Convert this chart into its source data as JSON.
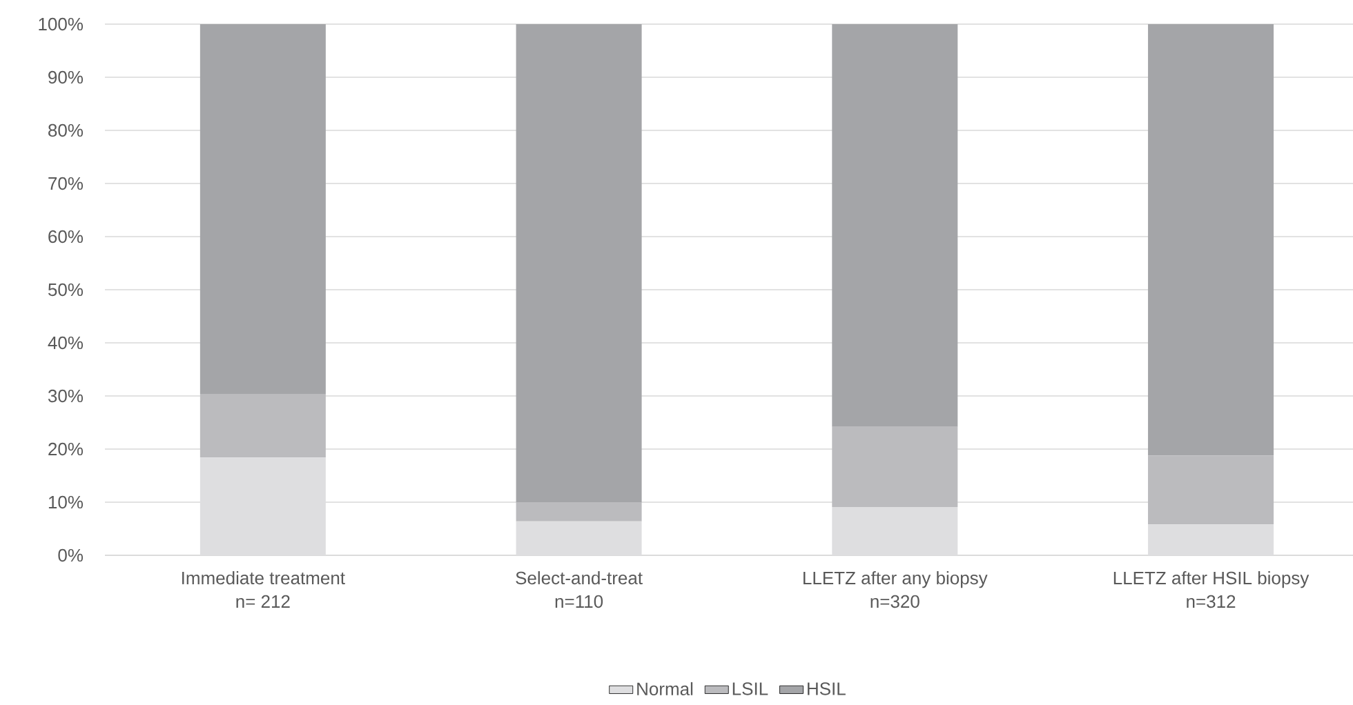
{
  "chart_data": {
    "type": "bar",
    "stacked": true,
    "categories": [
      "Immediate treatment\nn= 212",
      "Select-and-treat\nn=110",
      "LLETZ after any biopsy\nn=320",
      "LLETZ after HSIL biopsy\nn=312"
    ],
    "series": [
      {
        "name": "Normal",
        "color": "#dedee0",
        "values": [
          18.4,
          6.4,
          9.1,
          5.8
        ]
      },
      {
        "name": "LSIL",
        "color": "#bbbbbe",
        "values": [
          11.9,
          3.6,
          15.1,
          13.0
        ]
      },
      {
        "name": "HSIL",
        "color": "#a4a5a8",
        "values": [
          69.7,
          90.0,
          75.8,
          81.2
        ]
      }
    ],
    "ylim": [
      0,
      100
    ],
    "yticks": [
      {
        "value": 0,
        "label": "0%"
      },
      {
        "value": 10,
        "label": "10%"
      },
      {
        "value": 20,
        "label": "20%"
      },
      {
        "value": 30,
        "label": "30%"
      },
      {
        "value": 40,
        "label": "40%"
      },
      {
        "value": 50,
        "label": "50%"
      },
      {
        "value": 60,
        "label": "60%"
      },
      {
        "value": 70,
        "label": "70%"
      },
      {
        "value": 80,
        "label": "80%"
      },
      {
        "value": 90,
        "label": "90%"
      },
      {
        "value": 100,
        "label": "100%"
      }
    ],
    "grid": "y",
    "legend": "bottom"
  }
}
